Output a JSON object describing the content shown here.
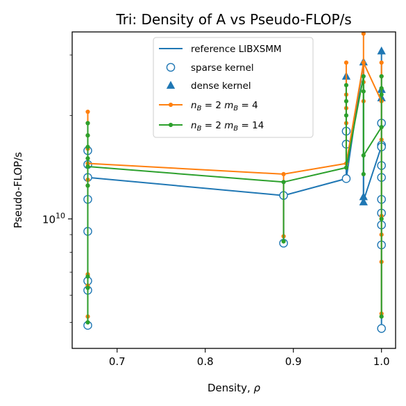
{
  "chart_data": {
    "type": "line",
    "title": "Tri: Density of A vs Pseudo-FLOP/s",
    "xlabel": "Density, ",
    "xlabel_symbol": "ρ",
    "ylabel": "Pseudo-FLOP/s",
    "x_scale": "linear",
    "y_scale": "log",
    "xlim": [
      0.649,
      1.016
    ],
    "ylim": [
      4200000000.0,
      35000000000.0
    ],
    "x_ticks": [
      {
        "value": 0.7,
        "label": "0.7"
      },
      {
        "value": 0.8,
        "label": "0.8"
      },
      {
        "value": 0.9,
        "label": "0.9"
      },
      {
        "value": 1.0,
        "label": "1.0"
      }
    ],
    "y_ticks": [
      {
        "value": 10000000000.0,
        "base": "10",
        "exp": "10"
      }
    ],
    "legend_position": "top-center",
    "colors": {
      "blue": "#1f77b4",
      "orange": "#ff7f0e",
      "green": "#2ca02c"
    },
    "series": [
      {
        "name": "reference LIBXSMM",
        "kind": "line",
        "color": "#1f77b4",
        "points": [
          [
            0.6667,
            13200000000.0
          ],
          [
            0.8889,
            11700000000.0
          ],
          [
            0.96,
            13100000000.0
          ],
          [
            0.9796,
            28600000000.0
          ],
          [
            0.9796,
            11300000000.0
          ],
          [
            1.0,
            16300000000.0
          ]
        ]
      },
      {
        "name": "sparse kernel",
        "kind": "markers",
        "marker": "open-circle",
        "color": "#1f77b4",
        "points": [
          [
            0.6667,
            15800000000.0
          ],
          [
            0.6667,
            14400000000.0
          ],
          [
            0.6667,
            13200000000.0
          ],
          [
            0.6667,
            11400000000.0
          ],
          [
            0.6667,
            9200000000.0
          ],
          [
            0.6667,
            6600000000.0
          ],
          [
            0.6667,
            6200000000.0
          ],
          [
            0.6667,
            4900000000.0
          ],
          [
            0.8889,
            11700000000.0
          ],
          [
            0.8889,
            8500000000.0
          ],
          [
            0.96,
            18000000000.0
          ],
          [
            0.96,
            16500000000.0
          ],
          [
            0.96,
            13100000000.0
          ],
          [
            1.0,
            19000000000.0
          ],
          [
            1.0,
            16400000000.0
          ],
          [
            1.0,
            16200000000.0
          ],
          [
            1.0,
            14300000000.0
          ],
          [
            1.0,
            13200000000.0
          ],
          [
            1.0,
            11400000000.0
          ],
          [
            1.0,
            10400000000.0
          ],
          [
            1.0,
            9600000000.0
          ],
          [
            1.0,
            8400000000.0
          ],
          [
            1.0,
            4800000000.0
          ]
        ]
      },
      {
        "name": "dense kernel",
        "kind": "markers",
        "marker": "filled-triangle",
        "color": "#1f77b4",
        "points": [
          [
            0.96,
            26000000000.0
          ],
          [
            0.9796,
            28600000000.0
          ],
          [
            0.9796,
            11600000000.0
          ],
          [
            0.9796,
            11200000000.0
          ],
          [
            1.0,
            30800000000.0
          ],
          [
            1.0,
            23800000000.0
          ],
          [
            1.0,
            22500000000.0
          ]
        ]
      },
      {
        "name": "n_B = 2 m_B = 4",
        "label_parts": {
          "n": "n",
          "n_sub": "B",
          "mid": " = 2 ",
          "m": "m",
          "m_sub": "B",
          "end": " = 4"
        },
        "kind": "line-markers",
        "color": "#ff7f0e",
        "points": [
          [
            0.6667,
            14500000000.0
          ],
          [
            0.8889,
            13500000000.0
          ],
          [
            0.96,
            14500000000.0
          ],
          [
            0.9796,
            28500000000.0
          ],
          [
            1.0,
            22000000000.0
          ]
        ],
        "dots": [
          [
            0.6667,
            20500000000.0
          ],
          [
            0.6667,
            19000000000.0
          ],
          [
            0.6667,
            17500000000.0
          ],
          [
            0.6667,
            16000000000.0
          ],
          [
            0.6667,
            14500000000.0
          ],
          [
            0.6667,
            13000000000.0
          ],
          [
            0.6667,
            12500000000.0
          ],
          [
            0.6667,
            6900000000.0
          ],
          [
            0.6667,
            6400000000.0
          ],
          [
            0.6667,
            5200000000.0
          ],
          [
            0.8889,
            13500000000.0
          ],
          [
            0.8889,
            8900000000.0
          ],
          [
            0.96,
            28500000000.0
          ],
          [
            0.96,
            23000000000.0
          ],
          [
            0.96,
            21000000000.0
          ],
          [
            0.96,
            19000000000.0
          ],
          [
            0.96,
            14500000000.0
          ],
          [
            0.9796,
            34600000000.0
          ],
          [
            0.9796,
            28500000000.0
          ],
          [
            0.9796,
            25000000000.0
          ],
          [
            0.9796,
            22000000000.0
          ],
          [
            1.0,
            28500000000.0
          ],
          [
            1.0,
            26000000000.0
          ],
          [
            1.0,
            22000000000.0
          ],
          [
            1.0,
            17000000000.0
          ],
          [
            1.0,
            10200000000.0
          ],
          [
            1.0,
            9000000000.0
          ],
          [
            1.0,
            7500000000.0
          ],
          [
            1.0,
            5300000000.0
          ]
        ]
      },
      {
        "name": "n_B = 2 m_B = 14",
        "label_parts": {
          "n": "n",
          "n_sub": "B",
          "mid": " = 2 ",
          "m": "m",
          "m_sub": "B",
          "end": " = 14"
        },
        "kind": "line-markers",
        "color": "#2ca02c",
        "points": [
          [
            0.6667,
            14200000000.0
          ],
          [
            0.8889,
            12800000000.0
          ],
          [
            0.96,
            14100000000.0
          ],
          [
            0.9796,
            26000000000.0
          ],
          [
            0.9796,
            15300000000.0
          ],
          [
            1.0,
            18500000000.0
          ]
        ],
        "dots": [
          [
            0.6667,
            19000000000.0
          ],
          [
            0.6667,
            17500000000.0
          ],
          [
            0.6667,
            16200000000.0
          ],
          [
            0.6667,
            15000000000.0
          ],
          [
            0.6667,
            14200000000.0
          ],
          [
            0.6667,
            12500000000.0
          ],
          [
            0.6667,
            6800000000.0
          ],
          [
            0.6667,
            6300000000.0
          ],
          [
            0.6667,
            5000000000.0
          ],
          [
            0.8889,
            12800000000.0
          ],
          [
            0.8889,
            8600000000.0
          ],
          [
            0.96,
            24500000000.0
          ],
          [
            0.96,
            22000000000.0
          ],
          [
            0.96,
            20000000000.0
          ],
          [
            0.96,
            14100000000.0
          ],
          [
            0.9796,
            26000000000.0
          ],
          [
            0.9796,
            23500000000.0
          ],
          [
            0.9796,
            15300000000.0
          ],
          [
            0.9796,
            13500000000.0
          ],
          [
            1.0,
            26000000000.0
          ],
          [
            1.0,
            24000000000.0
          ],
          [
            1.0,
            23000000000.0
          ],
          [
            1.0,
            18500000000.0
          ],
          [
            1.0,
            10000000000.0
          ],
          [
            1.0,
            5200000000.0
          ]
        ]
      }
    ]
  }
}
